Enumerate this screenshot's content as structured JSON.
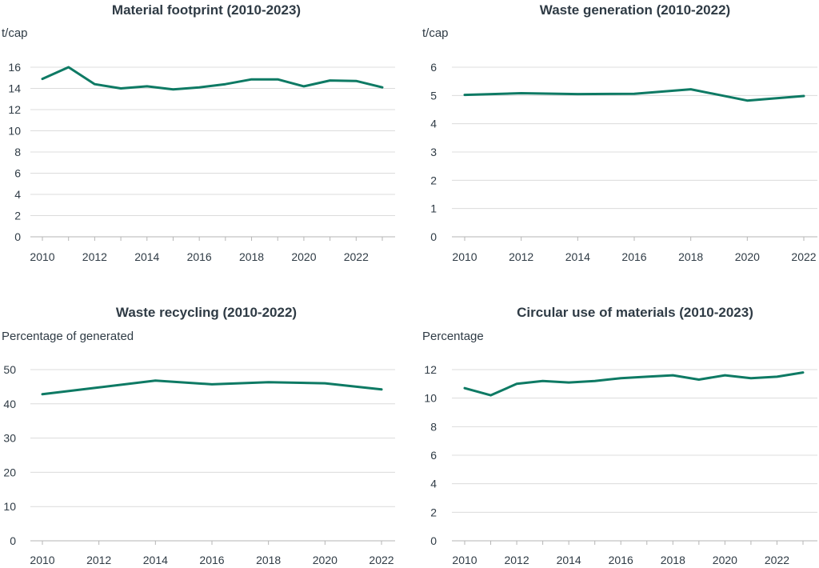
{
  "colors": {
    "series": "#0e7a64",
    "text": "#2f3b45",
    "grid": "#dcdcdc"
  },
  "chart_data": [
    {
      "type": "line",
      "title": "Material footprint (2010-2023)",
      "ylabel": "t/cap",
      "xlabel": "",
      "x": [
        2010,
        2011,
        2012,
        2013,
        2014,
        2015,
        2016,
        2017,
        2018,
        2019,
        2020,
        2021,
        2022,
        2023
      ],
      "series": [
        {
          "name": "Material footprint",
          "values": [
            14.9,
            16.0,
            14.4,
            14.0,
            14.2,
            13.9,
            14.1,
            14.4,
            14.85,
            14.85,
            14.2,
            14.75,
            14.7,
            14.1
          ]
        }
      ],
      "ylim": [
        0,
        16
      ],
      "yticks": [
        0,
        2,
        4,
        6,
        8,
        10,
        12,
        14,
        16
      ],
      "xticks": [
        2010,
        2012,
        2014,
        2016,
        2018,
        2020,
        2022
      ],
      "xlim": [
        2010,
        2023
      ],
      "grid": true
    },
    {
      "type": "line",
      "title": "Waste generation (2010-2022)",
      "ylabel": "t/cap",
      "xlabel": "",
      "x": [
        2010,
        2012,
        2014,
        2016,
        2018,
        2020,
        2022
      ],
      "series": [
        {
          "name": "Waste generation",
          "values": [
            5.02,
            5.08,
            5.05,
            5.06,
            5.22,
            4.82,
            4.98
          ]
        }
      ],
      "ylim": [
        0,
        6
      ],
      "yticks": [
        0,
        1,
        2,
        3,
        4,
        5,
        6
      ],
      "xticks": [
        2010,
        2012,
        2014,
        2016,
        2018,
        2020,
        2022
      ],
      "xlim": [
        2010,
        2022
      ],
      "grid": true
    },
    {
      "type": "line",
      "title": "Waste recycling (2010-2022)",
      "ylabel": "Percentage of generated",
      "xlabel": "",
      "x": [
        2010,
        2012,
        2014,
        2016,
        2018,
        2020,
        2022
      ],
      "series": [
        {
          "name": "Waste recycling",
          "values": [
            42.8,
            44.8,
            46.8,
            45.7,
            46.3,
            46.0,
            44.2
          ]
        }
      ],
      "ylim": [
        0,
        50
      ],
      "yticks": [
        0,
        10,
        20,
        30,
        40,
        50
      ],
      "xticks": [
        2010,
        2012,
        2014,
        2016,
        2018,
        2020,
        2022
      ],
      "xlim": [
        2010,
        2022
      ],
      "grid": true
    },
    {
      "type": "line",
      "title": "Circular use of materials (2010-2023)",
      "ylabel": "Percentage",
      "xlabel": "",
      "x": [
        2010,
        2011,
        2012,
        2013,
        2014,
        2015,
        2016,
        2017,
        2018,
        2019,
        2020,
        2021,
        2022,
        2023
      ],
      "series": [
        {
          "name": "Circular use of materials",
          "values": [
            10.7,
            10.2,
            11.0,
            11.2,
            11.1,
            11.2,
            11.4,
            11.5,
            11.6,
            11.3,
            11.6,
            11.4,
            11.5,
            11.8
          ]
        }
      ],
      "ylim": [
        0,
        12
      ],
      "yticks": [
        0,
        2,
        4,
        6,
        8,
        10,
        12
      ],
      "xticks": [
        2010,
        2012,
        2014,
        2016,
        2018,
        2020,
        2022
      ],
      "xlim": [
        2010,
        2023
      ],
      "grid": true
    }
  ]
}
